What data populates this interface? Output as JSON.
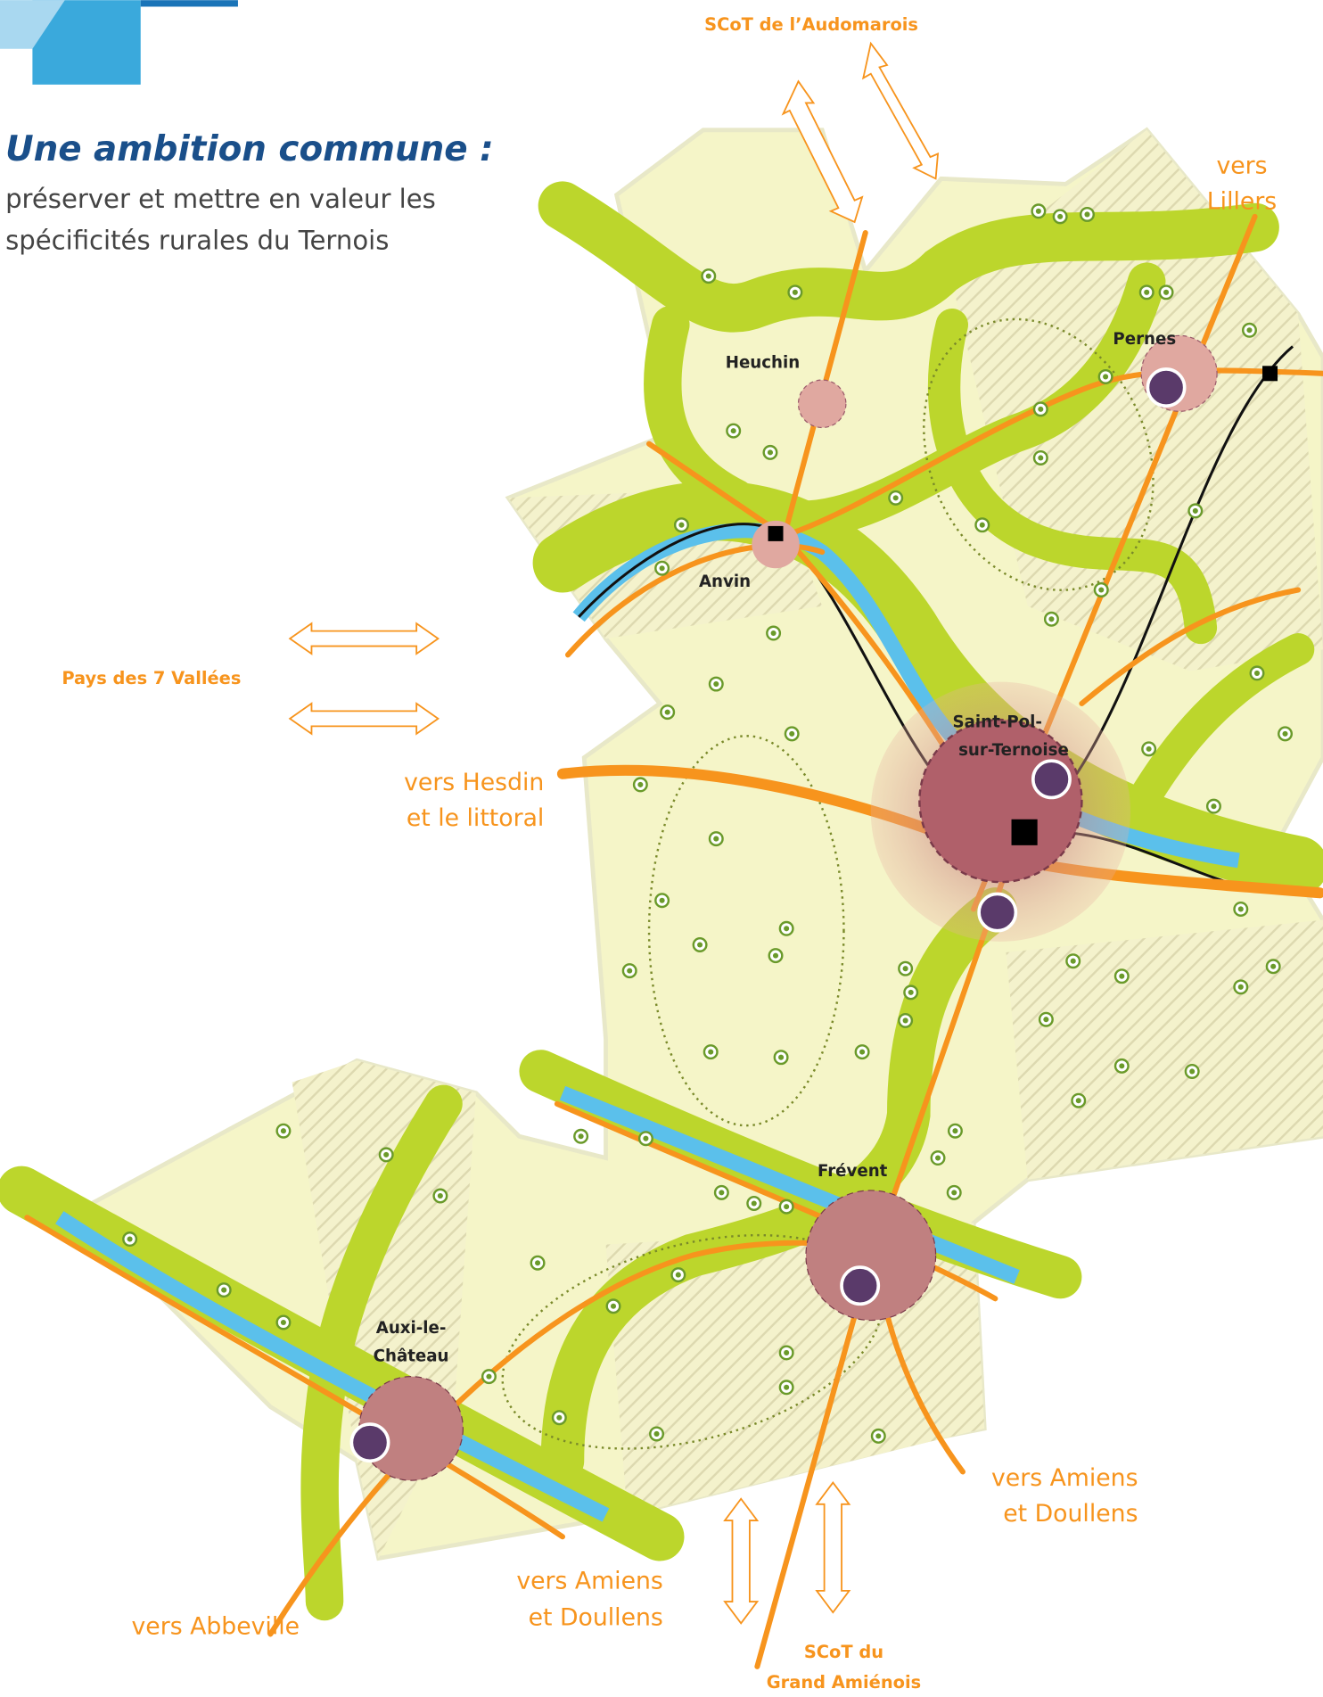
{
  "header": {
    "title": "Une ambition commune :",
    "subtitle": [
      "préserver et mettre en valeur les",
      "spécificités rurales du Ternois"
    ]
  },
  "neighbors": [
    {
      "lines": [
        "SCoT de l’Audomarois"
      ]
    },
    {
      "lines": [
        "Pays des 7 Vallées"
      ]
    },
    {
      "lines": [
        "SCoT du",
        "Grand Amiénois"
      ]
    }
  ],
  "towns": [
    {
      "lines": [
        "Heuchin"
      ]
    },
    {
      "lines": [
        "Pernes"
      ]
    },
    {
      "lines": [
        "Anvin"
      ]
    },
    {
      "lines": [
        "Saint-Pol-",
        "sur-Ternoise"
      ]
    },
    {
      "lines": [
        "Frévent"
      ]
    },
    {
      "lines": [
        "Auxi-le-",
        "Château"
      ]
    }
  ],
  "directions": [
    {
      "lines": [
        "vers",
        "Lillers"
      ]
    },
    {
      "lines": [
        "vers Hesdin",
        "et le littoral"
      ]
    },
    {
      "lines": [
        "vers Amiens",
        "et Doullens"
      ]
    },
    {
      "lines": [
        "vers Amiens",
        "et Doullens"
      ]
    },
    {
      "lines": [
        "vers Abbeville"
      ]
    }
  ]
}
